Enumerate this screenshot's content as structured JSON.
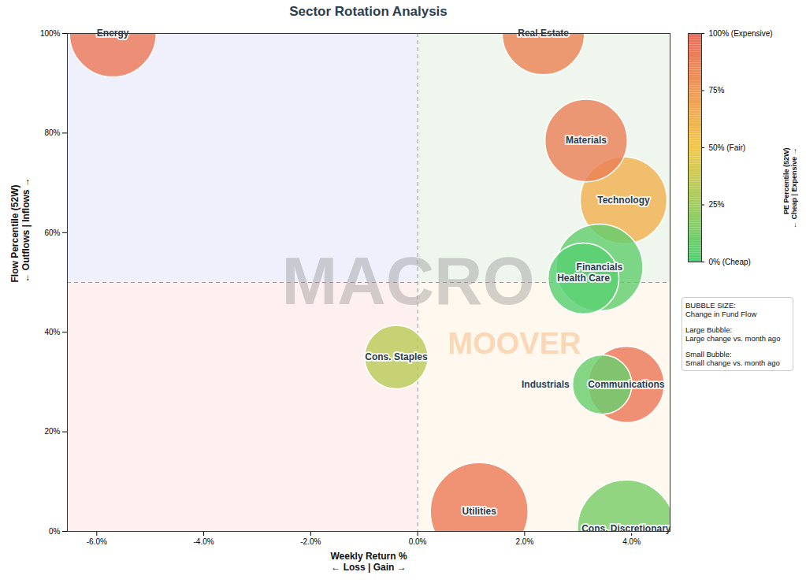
{
  "chart_data": {
    "type": "bubble",
    "title": "Sector Rotation Analysis",
    "x_label": "Weekly Return %\n← Loss | Gain →",
    "y_label": "Flow Percentile (52W)\n← Outflows | Inflows →",
    "xlim": [
      -6.55,
      4.72
    ],
    "ylim": [
      0,
      100
    ],
    "xticks": [
      {
        "value": -6,
        "label": "-6.0%"
      },
      {
        "value": -4,
        "label": "-4.0%"
      },
      {
        "value": -2,
        "label": "-2.0%"
      },
      {
        "value": 0,
        "label": "0.0%"
      },
      {
        "value": 2,
        "label": "2.0%"
      },
      {
        "value": 4,
        "label": "4.0%"
      }
    ],
    "yticks": [
      {
        "value": 0,
        "label": "0%"
      },
      {
        "value": 20,
        "label": "20%"
      },
      {
        "value": 40,
        "label": "40%"
      },
      {
        "value": 60,
        "label": "60%"
      },
      {
        "value": 80,
        "label": "80%"
      },
      {
        "value": 100,
        "label": "100%"
      }
    ],
    "x_divider": 0,
    "y_divider": 50,
    "grid": false,
    "legend": "right",
    "points": [
      {
        "name": "Energy",
        "x": -5.7,
        "y": 100,
        "pe_percentile": 92,
        "flow_change": 30
      },
      {
        "name": "Real Estate",
        "x": 2.35,
        "y": 100,
        "pe_percentile": 86,
        "flow_change": 27
      },
      {
        "name": "Materials",
        "x": 3.15,
        "y": 78.5,
        "pe_percentile": 88,
        "flow_change": 27
      },
      {
        "name": "Technology",
        "x": 3.85,
        "y": 66.5,
        "pe_percentile": 62,
        "flow_change": 30
      },
      {
        "name": "Financials",
        "x": 3.4,
        "y": 53,
        "pe_percentile": 6,
        "flow_change": 30
      },
      {
        "name": "Health Care",
        "x": 3.1,
        "y": 50.8,
        "pe_percentile": 3,
        "flow_change": 20
      },
      {
        "name": "Cons. Staples",
        "x": -0.4,
        "y": 35,
        "pe_percentile": 33,
        "flow_change": 16
      },
      {
        "name": "Industrials",
        "x": 3.45,
        "y": 29.5,
        "pe_percentile": 8,
        "flow_change": 14
      },
      {
        "name": "Communications",
        "x": 3.9,
        "y": 29.5,
        "pe_percentile": 92,
        "flow_change": 23
      },
      {
        "name": "Utilities",
        "x": 1.15,
        "y": 4,
        "pe_percentile": 90,
        "flow_change": 38
      },
      {
        "name": "Cons. Discretionary",
        "x": 3.9,
        "y": 0.5,
        "pe_percentile": 13,
        "flow_change": 38
      }
    ],
    "colorbar": {
      "label": "PE Percentile (52W)\n← Cheap | Expensive →",
      "range": [
        0,
        100
      ],
      "ticks": [
        {
          "value": 0,
          "label": "0% (Cheap)"
        },
        {
          "value": 25,
          "label": "25%"
        },
        {
          "value": 50,
          "label": "50% (Fair)"
        },
        {
          "value": 75,
          "label": "75%"
        },
        {
          "value": 100,
          "label": "100% (Expensive)"
        }
      ],
      "colors": [
        "#4fcf73",
        "#f2c84b",
        "#ea6a5c"
      ]
    },
    "size_legend": [
      {
        "title": "BUBBLE SIZE:",
        "text": "Change in Fund Flow"
      },
      {
        "title": "Large Bubble:",
        "text": "Large change vs. month ago"
      },
      {
        "title": "Small Bubble:",
        "text": "Small change vs. month ago"
      }
    ],
    "watermark": [
      "MACRO",
      "MOOVER"
    ]
  }
}
